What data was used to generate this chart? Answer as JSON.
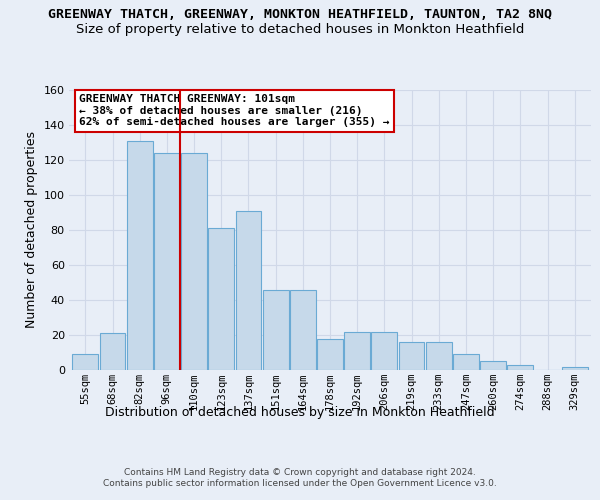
{
  "title1": "GREENWAY THATCH, GREENWAY, MONKTON HEATHFIELD, TAUNTON, TA2 8NQ",
  "title2": "Size of property relative to detached houses in Monkton Heathfield",
  "xlabel": "Distribution of detached houses by size in Monkton Heathfield",
  "ylabel": "Number of detached properties",
  "categories": [
    "55sqm",
    "68sqm",
    "82sqm",
    "96sqm",
    "110sqm",
    "123sqm",
    "137sqm",
    "151sqm",
    "164sqm",
    "178sqm",
    "192sqm",
    "206sqm",
    "219sqm",
    "233sqm",
    "247sqm",
    "260sqm",
    "274sqm",
    "288sqm",
    "329sqm"
  ],
  "values": [
    9,
    21,
    131,
    124,
    124,
    81,
    91,
    46,
    46,
    18,
    22,
    22,
    16,
    16,
    9,
    5,
    3,
    0,
    2
  ],
  "bar_color": "#c6d9ea",
  "bar_edge_color": "#6aaad4",
  "vline_color": "#cc0000",
  "vline_pos": 3.5,
  "ylim": [
    0,
    160
  ],
  "yticks": [
    0,
    20,
    40,
    60,
    80,
    100,
    120,
    140,
    160
  ],
  "footer1": "Contains HM Land Registry data © Crown copyright and database right 2024.",
  "footer2": "Contains public sector information licensed under the Open Government Licence v3.0.",
  "bg_color": "#e8eef7",
  "grid_color": "#d0d8e8",
  "annotation_line1": "GREENWAY THATCH GREENWAY: 101sqm",
  "annotation_line2": "← 38% of detached houses are smaller (216)",
  "annotation_line3": "62% of semi-detached houses are larger (355) →"
}
